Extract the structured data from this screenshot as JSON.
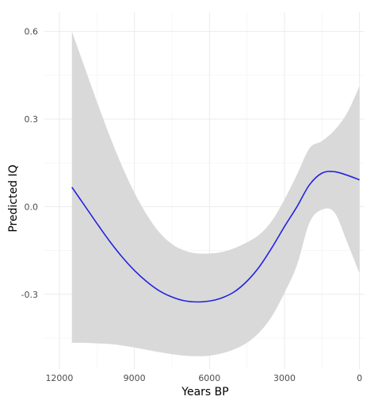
{
  "chart_data": {
    "type": "line",
    "title": "",
    "xlabel": "Years BP",
    "ylabel": "Predicted IQ",
    "x_reversed": true,
    "xlim": [
      12600,
      -200
    ],
    "ylim": [
      -0.556,
      0.667
    ],
    "x_ticks": [
      12000,
      9000,
      6000,
      3000,
      0
    ],
    "x_tick_labels": [
      "12000",
      "9000",
      "6000",
      "3000",
      "0"
    ],
    "y_ticks": [
      0.6,
      0.3,
      0.0,
      -0.3
    ],
    "y_tick_labels": [
      "0.6",
      "0.3",
      "0.0",
      "-0.3"
    ],
    "grid": true,
    "legend": "none",
    "colors": {
      "line": "#2323e0",
      "ribbon": "#d9d9d9",
      "grid_major": "#ebebeb",
      "grid_minor": "#f4f4f4"
    },
    "series": [
      {
        "x": [
          11500,
          11000,
          10500,
          10000,
          9500,
          9000,
          8500,
          8000,
          7500,
          7000,
          6500,
          6000,
          5500,
          5000,
          4500,
          4000,
          3500,
          3000,
          2500,
          2000,
          1500,
          1000,
          500,
          0
        ],
        "y": [
          0.067,
          0.005,
          -0.057,
          -0.117,
          -0.171,
          -0.218,
          -0.257,
          -0.288,
          -0.309,
          -0.322,
          -0.326,
          -0.323,
          -0.312,
          -0.291,
          -0.255,
          -0.205,
          -0.14,
          -0.068,
          0.0,
          0.075,
          0.115,
          0.12,
          0.108,
          0.092
        ],
        "lower": [
          -0.466,
          -0.466,
          -0.468,
          -0.47,
          -0.475,
          -0.482,
          -0.49,
          -0.498,
          -0.505,
          -0.51,
          -0.512,
          -0.51,
          -0.502,
          -0.488,
          -0.466,
          -0.43,
          -0.375,
          -0.295,
          -0.2,
          -0.055,
          -0.01,
          -0.02,
          -0.12,
          -0.228
        ],
        "upper": [
          0.6,
          0.48,
          0.36,
          0.245,
          0.14,
          0.048,
          -0.028,
          -0.088,
          -0.128,
          -0.15,
          -0.16,
          -0.16,
          -0.155,
          -0.142,
          -0.122,
          -0.095,
          -0.048,
          0.025,
          0.11,
          0.2,
          0.225,
          0.262,
          0.32,
          0.413
        ]
      }
    ]
  }
}
